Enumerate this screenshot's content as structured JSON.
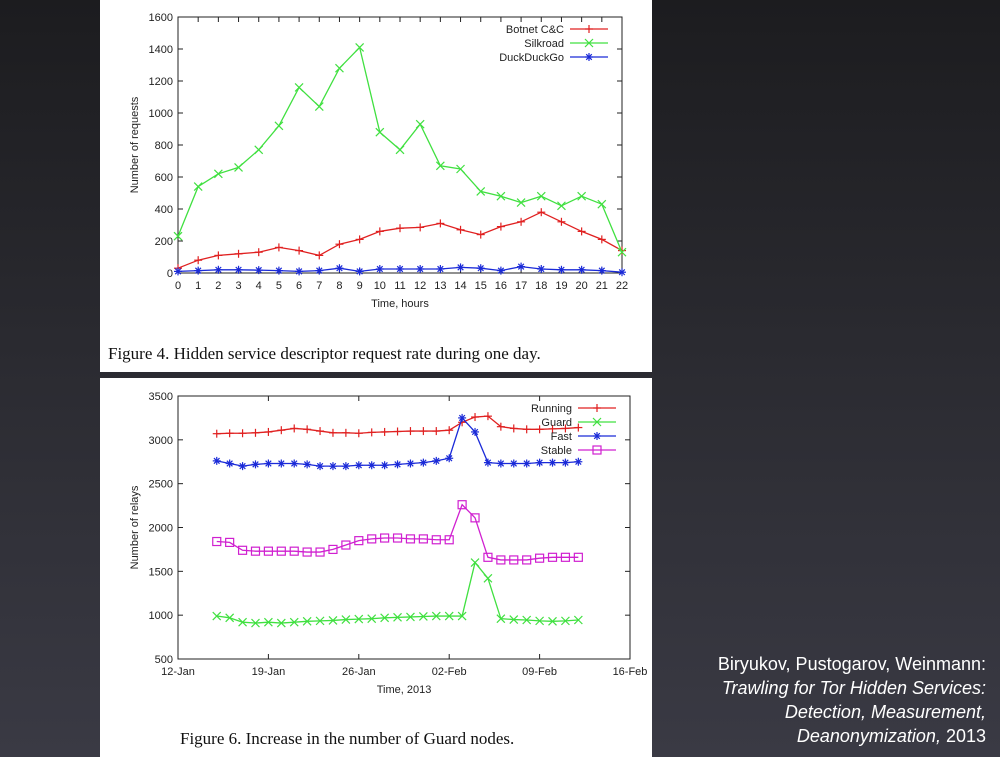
{
  "chart_data": [
    {
      "type": "line",
      "title": "",
      "xlabel": "Time, hours",
      "ylabel": "Number of requests",
      "x": [
        0,
        1,
        2,
        3,
        4,
        5,
        6,
        7,
        8,
        9,
        10,
        11,
        12,
        13,
        14,
        15,
        16,
        17,
        18,
        19,
        20,
        21,
        22
      ],
      "xlim": [
        0,
        22
      ],
      "ylim": [
        0,
        1600
      ],
      "xticks": [
        "0",
        "1",
        "2",
        "3",
        "4",
        "5",
        "6",
        "7",
        "8",
        "9",
        "10",
        "11",
        "12",
        "13",
        "14",
        "15",
        "16",
        "17",
        "18",
        "19",
        "20",
        "21",
        "22"
      ],
      "yticks": [
        "0",
        "200",
        "400",
        "600",
        "800",
        "1000",
        "1200",
        "1400",
        "1600"
      ],
      "legend_position": "top-right",
      "series": [
        {
          "name": "Botnet C&C",
          "color": "#e02020",
          "marker": "plus",
          "values": [
            30,
            80,
            110,
            120,
            130,
            160,
            140,
            110,
            180,
            210,
            260,
            280,
            285,
            310,
            270,
            240,
            290,
            320,
            380,
            320,
            260,
            210,
            140
          ]
        },
        {
          "name": "Silkroad",
          "color": "#40e040",
          "marker": "x",
          "values": [
            230,
            540,
            620,
            660,
            770,
            920,
            1160,
            1040,
            1280,
            1410,
            880,
            770,
            930,
            670,
            650,
            510,
            480,
            440,
            480,
            420,
            480,
            430,
            130
          ]
        },
        {
          "name": "DuckDuckGo",
          "color": "#1a2ad8",
          "marker": "star",
          "values": [
            10,
            15,
            20,
            20,
            18,
            15,
            10,
            15,
            30,
            10,
            25,
            25,
            25,
            25,
            35,
            30,
            15,
            40,
            25,
            20,
            20,
            15,
            5
          ]
        }
      ],
      "caption": "Figure 4.    Hidden service descriptor request rate during one day."
    },
    {
      "type": "line",
      "title": "",
      "xlabel": "Time, 2013",
      "ylabel": "Number of relays",
      "xlim": [
        0,
        35
      ],
      "ylim": [
        500,
        3500
      ],
      "xtick_values": [
        0,
        7,
        14,
        21,
        28,
        35
      ],
      "xticks": [
        "12-Jan",
        "19-Jan",
        "26-Jan",
        "02-Feb",
        "09-Feb",
        "16-Feb"
      ],
      "yticks": [
        "500",
        "1000",
        "1500",
        "2000",
        "2500",
        "3000",
        "3500"
      ],
      "legend_position": "top-right",
      "x": [
        3,
        4,
        5,
        6,
        7,
        8,
        9,
        10,
        11,
        12,
        13,
        14,
        15,
        16,
        17,
        18,
        19,
        20,
        21,
        22,
        23,
        24,
        25,
        26,
        27,
        28,
        29,
        30,
        31
      ],
      "series": [
        {
          "name": "Running",
          "color": "#e02020",
          "marker": "plus",
          "values": [
            3070,
            3075,
            3075,
            3080,
            3090,
            3110,
            3130,
            3120,
            3100,
            3080,
            3080,
            3075,
            3085,
            3090,
            3095,
            3100,
            3100,
            3100,
            3110,
            3200,
            3260,
            3270,
            3150,
            3130,
            3120,
            3120,
            3125,
            3130,
            3140
          ]
        },
        {
          "name": "Guard",
          "color": "#40e040",
          "marker": "x",
          "values": [
            990,
            970,
            920,
            910,
            920,
            910,
            920,
            930,
            935,
            940,
            950,
            955,
            960,
            970,
            975,
            980,
            985,
            990,
            990,
            990,
            1600,
            1420,
            960,
            950,
            945,
            935,
            930,
            935,
            945
          ]
        },
        {
          "name": "Fast",
          "color": "#1a2ad8",
          "marker": "star",
          "values": [
            2760,
            2730,
            2700,
            2720,
            2730,
            2730,
            2730,
            2720,
            2700,
            2700,
            2700,
            2710,
            2710,
            2710,
            2720,
            2730,
            2740,
            2760,
            2790,
            3250,
            3090,
            2740,
            2730,
            2730,
            2730,
            2740,
            2740,
            2740,
            2750
          ]
        },
        {
          "name": "Stable",
          "color": "#d020d0",
          "marker": "square",
          "values": [
            1840,
            1830,
            1740,
            1730,
            1730,
            1730,
            1730,
            1720,
            1720,
            1750,
            1800,
            1850,
            1870,
            1880,
            1880,
            1870,
            1870,
            1860,
            1860,
            2260,
            2110,
            1660,
            1630,
            1630,
            1630,
            1650,
            1660,
            1660,
            1660
          ]
        }
      ],
      "caption": "Figure 6.    Increase in the number of Guard nodes."
    }
  ],
  "citation": {
    "authors": "Biryukov, Pustogarov, Weinmann:",
    "title_line1": "Trawling for Tor Hidden Services:",
    "title_line2": "Detection, Measurement,",
    "title_line3": "Deanonymization,",
    "year": " 2013"
  }
}
